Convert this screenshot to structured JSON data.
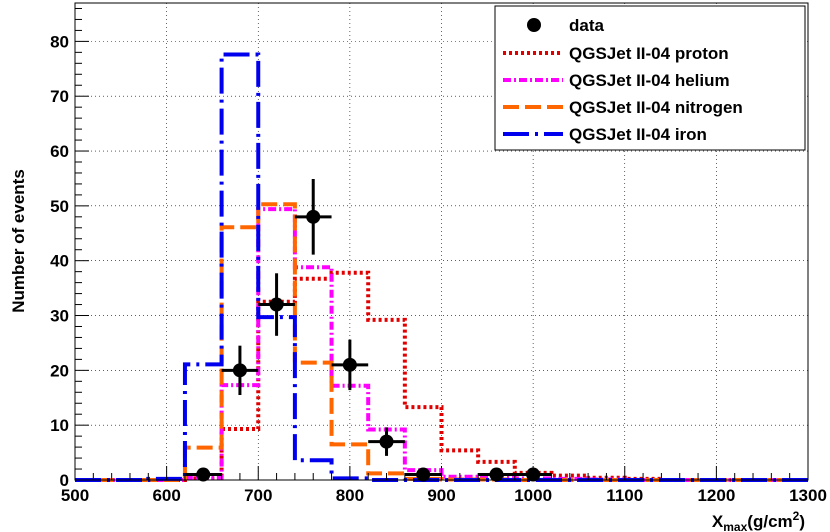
{
  "chart_data": {
    "type": "step-histogram",
    "xlabel_main": "X",
    "xlabel_sub": "max",
    "xlabel_unit_pre": "(g/cm",
    "xlabel_unit_sup": "2",
    "xlabel_unit_post": ")",
    "ylabel": "Number of events",
    "xlim": [
      500,
      1300
    ],
    "ylim": [
      0,
      87
    ],
    "x_ticks": [
      500,
      600,
      700,
      800,
      900,
      1000,
      1100,
      1200,
      1300
    ],
    "x_tick_labels": [
      "500",
      "600",
      "700",
      "800",
      "900",
      "1000",
      "1100",
      "1200",
      "1300"
    ],
    "y_ticks": [
      0,
      10,
      20,
      30,
      40,
      50,
      60,
      70,
      80
    ],
    "y_tick_labels": [
      "0",
      "10",
      "20",
      "30",
      "40",
      "50",
      "60",
      "70",
      "80"
    ],
    "grid": true,
    "legend_position": "top-right",
    "bin_edges": [
      500,
      540,
      580,
      620,
      660,
      700,
      740,
      780,
      820,
      860,
      900,
      940,
      980,
      1020,
      1060,
      1100,
      1140,
      1180,
      1220,
      1260,
      1300
    ],
    "data": {
      "name": "data",
      "color": "#000000",
      "points": [
        {
          "x": 640,
          "y": 1,
          "err": 1
        },
        {
          "x": 680,
          "y": 20,
          "err": 4.5
        },
        {
          "x": 720,
          "y": 32,
          "err": 5.7
        },
        {
          "x": 760,
          "y": 48,
          "err": 6.9
        },
        {
          "x": 800,
          "y": 21,
          "err": 4.6
        },
        {
          "x": 840,
          "y": 7,
          "err": 2.6
        },
        {
          "x": 880,
          "y": 1,
          "err": 1
        },
        {
          "x": 960,
          "y": 1,
          "err": 1
        },
        {
          "x": 1000,
          "y": 1,
          "err": 1
        }
      ]
    },
    "series": [
      {
        "name": "QGSJet II-04 proton",
        "color": "#e00000",
        "style": "dotted",
        "values": [
          0,
          0,
          0,
          0.3,
          9.3,
          32.5,
          36.7,
          37.8,
          29.2,
          13.3,
          5.4,
          3.3,
          1.3,
          0.8,
          0.4,
          0.2,
          0,
          0,
          0,
          0
        ]
      },
      {
        "name": "QGSJet II-04 helium",
        "color": "#ff00ff",
        "style": "dashdot",
        "values": [
          0,
          0,
          0,
          0.4,
          17.3,
          49.4,
          38.8,
          17.2,
          9.2,
          1.8,
          0.6,
          0.5,
          0.3,
          0.2,
          0.1,
          0,
          0,
          0,
          0,
          0
        ]
      },
      {
        "name": "QGSJet II-04 nitrogen",
        "color": "#ff6600",
        "style": "longdash",
        "values": [
          0,
          0,
          0,
          5.9,
          46.1,
          50.3,
          21.4,
          6.5,
          1.2,
          0.2,
          0.1,
          0.1,
          0,
          0,
          0,
          0,
          0,
          0,
          0,
          0
        ]
      },
      {
        "name": "QGSJet II-04 iron",
        "color": "#0000ee",
        "style": "longdashdot",
        "values": [
          0,
          0,
          0.2,
          21.1,
          77.6,
          29.7,
          3.6,
          0.3,
          0,
          0,
          0,
          0,
          0,
          0,
          0,
          0,
          0,
          0,
          0,
          0
        ]
      }
    ]
  }
}
